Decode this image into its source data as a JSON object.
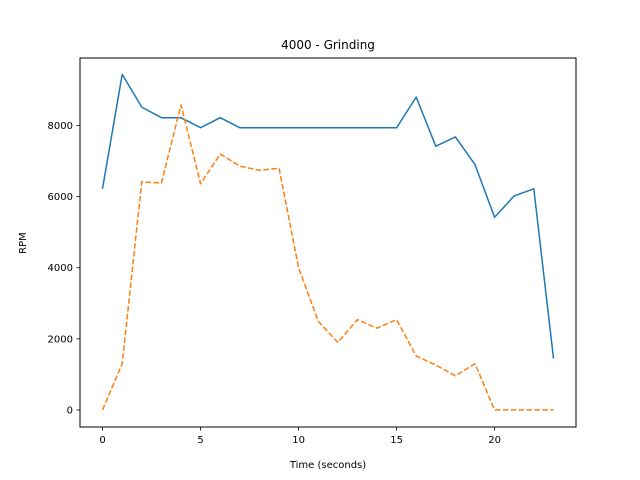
{
  "chart_data": {
    "type": "line",
    "title": "4000 - Grinding",
    "xlabel": "Time (seconds)",
    "ylabel": "RPM",
    "xlim": [
      -1.15,
      24.15
    ],
    "ylim": [
      -480,
      9900
    ],
    "xticks": [
      0,
      5,
      10,
      15,
      20
    ],
    "yticks": [
      0,
      2000,
      4000,
      6000,
      8000
    ],
    "grid": false,
    "legend": false,
    "x": [
      0,
      1,
      2,
      3,
      4,
      5,
      6,
      7,
      8,
      9,
      10,
      11,
      12,
      13,
      14,
      15,
      16,
      17,
      18,
      19,
      20,
      21,
      22,
      23
    ],
    "series": [
      {
        "color": "#1f77b4",
        "style": "solid",
        "values": [
          6220,
          9440,
          8520,
          8220,
          8220,
          7940,
          8220,
          7940,
          7940,
          7940,
          7940,
          7940,
          7940,
          7940,
          7940,
          7940,
          8800,
          7420,
          7680,
          6900,
          5420,
          6020,
          6220,
          1450
        ]
      },
      {
        "color": "#ff7f0e",
        "style": "dashed",
        "values": [
          0,
          1300,
          6420,
          6380,
          8580,
          6360,
          7200,
          6860,
          6740,
          6800,
          4000,
          2500,
          1900,
          2540,
          2300,
          2540,
          1520,
          1260,
          960,
          1300,
          0,
          0,
          0,
          0
        ]
      }
    ]
  }
}
